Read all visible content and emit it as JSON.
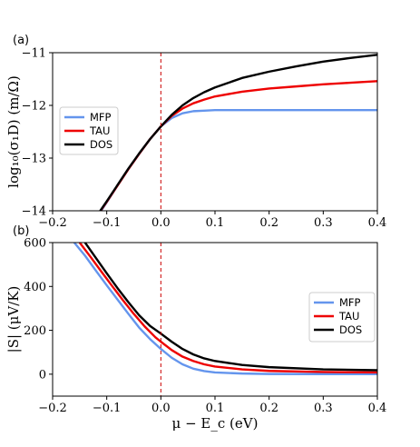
{
  "chart_data": [
    {
      "type": "line",
      "panel_label": "(a)",
      "ylabel": "log₁₀(σ₁D) (m/Ω)",
      "xlim": [
        -0.2,
        0.4
      ],
      "ylim": [
        -14,
        -11
      ],
      "xticks": [
        -0.2,
        -0.1,
        0.0,
        0.1,
        0.2,
        0.3,
        0.4
      ],
      "xtick_labels": [
        "−0.2",
        "−0.1",
        "0.0",
        "0.1",
        "0.2",
        "0.3",
        "0.4"
      ],
      "yticks": [
        -14,
        -13,
        -12,
        -11
      ],
      "ytick_labels": [
        "−14",
        "−13",
        "−12",
        "−11"
      ],
      "vline": {
        "x": 0.0,
        "color": "#cc0000",
        "style": "dashed"
      },
      "legend": {
        "position": "center-left"
      },
      "series": [
        {
          "name": "MFP",
          "color": "#6495ed",
          "x": [
            -0.12,
            -0.1,
            -0.08,
            -0.06,
            -0.04,
            -0.02,
            0.0,
            0.02,
            0.04,
            0.06,
            0.08,
            0.1,
            0.15,
            0.2,
            0.3,
            0.4
          ],
          "y": [
            -14.15,
            -13.84,
            -13.52,
            -13.21,
            -12.92,
            -12.64,
            -12.4,
            -12.24,
            -12.15,
            -12.11,
            -12.1,
            -12.09,
            -12.09,
            -12.09,
            -12.09,
            -12.09
          ]
        },
        {
          "name": "TAU",
          "color": "#ee0000",
          "x": [
            -0.12,
            -0.1,
            -0.08,
            -0.06,
            -0.04,
            -0.02,
            0.0,
            0.02,
            0.04,
            0.06,
            0.08,
            0.1,
            0.15,
            0.2,
            0.25,
            0.3,
            0.35,
            0.4
          ],
          "y": [
            -14.13,
            -13.83,
            -13.52,
            -13.21,
            -12.92,
            -12.64,
            -12.4,
            -12.2,
            -12.06,
            -11.96,
            -11.89,
            -11.83,
            -11.74,
            -11.68,
            -11.64,
            -11.6,
            -11.57,
            -11.54
          ]
        },
        {
          "name": "DOS",
          "color": "#000000",
          "x": [
            -0.12,
            -0.1,
            -0.08,
            -0.06,
            -0.04,
            -0.02,
            0.0,
            0.02,
            0.04,
            0.06,
            0.08,
            0.1,
            0.15,
            0.2,
            0.25,
            0.3,
            0.35,
            0.4
          ],
          "y": [
            -14.12,
            -13.82,
            -13.51,
            -13.2,
            -12.91,
            -12.64,
            -12.4,
            -12.18,
            -12.0,
            -11.86,
            -11.75,
            -11.66,
            -11.48,
            -11.36,
            -11.26,
            -11.17,
            -11.1,
            -11.04
          ]
        }
      ]
    },
    {
      "type": "line",
      "panel_label": "(b)",
      "xlabel": "μ − E_c (eV)",
      "ylabel": "|S| (μV/K)",
      "xlim": [
        -0.2,
        0.4
      ],
      "ylim": [
        -100,
        600
      ],
      "xticks": [
        -0.2,
        -0.1,
        0.0,
        0.1,
        0.2,
        0.3,
        0.4
      ],
      "xtick_labels": [
        "−0.2",
        "−0.1",
        "0.0",
        "0.1",
        "0.2",
        "0.3",
        "0.4"
      ],
      "yticks": [
        0,
        200,
        400,
        600
      ],
      "ytick_labels": [
        "0",
        "200",
        "400",
        "600"
      ],
      "vline": {
        "x": 0.0,
        "color": "#cc0000",
        "style": "dashed"
      },
      "legend": {
        "position": "center-right"
      },
      "series": [
        {
          "name": "MFP",
          "color": "#6495ed",
          "x": [
            -0.16,
            -0.14,
            -0.12,
            -0.1,
            -0.08,
            -0.06,
            -0.04,
            -0.02,
            0.0,
            0.02,
            0.04,
            0.06,
            0.08,
            0.1,
            0.15,
            0.2,
            0.3,
            0.4
          ],
          "y": [
            600,
            540,
            472,
            405,
            340,
            275,
            212,
            160,
            115,
            75,
            45,
            25,
            14,
            8,
            3,
            1,
            0.5,
            0.3
          ]
        },
        {
          "name": "TAU",
          "color": "#ee0000",
          "x": [
            -0.15,
            -0.13,
            -0.11,
            -0.09,
            -0.07,
            -0.05,
            -0.03,
            -0.01,
            0.0,
            0.02,
            0.04,
            0.06,
            0.08,
            0.1,
            0.15,
            0.2,
            0.3,
            0.4
          ],
          "y": [
            600,
            535,
            468,
            402,
            337,
            275,
            218,
            168,
            148,
            110,
            80,
            60,
            45,
            35,
            22,
            15,
            10,
            8
          ]
        },
        {
          "name": "DOS",
          "color": "#000000",
          "x": [
            -0.14,
            -0.12,
            -0.1,
            -0.08,
            -0.06,
            -0.04,
            -0.02,
            0.0,
            0.02,
            0.04,
            0.06,
            0.08,
            0.1,
            0.15,
            0.2,
            0.3,
            0.4
          ],
          "y": [
            600,
            530,
            460,
            392,
            328,
            268,
            220,
            185,
            148,
            115,
            90,
            72,
            60,
            42,
            32,
            22,
            18
          ]
        }
      ]
    }
  ]
}
